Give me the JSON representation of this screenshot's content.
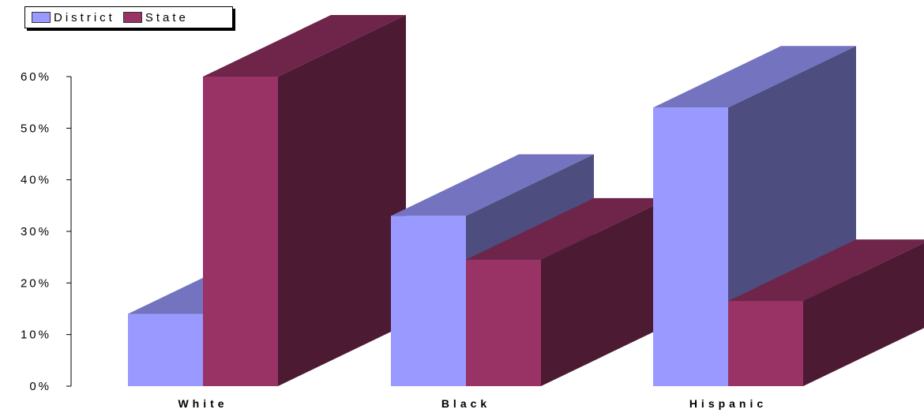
{
  "legend": {
    "district_label": "District",
    "state_label": "State"
  },
  "colors": {
    "district": "#9999ff",
    "state": "#993366"
  },
  "chart_data": {
    "type": "bar",
    "categories": [
      "White",
      "Black",
      "Hispanic"
    ],
    "series": [
      {
        "name": "District",
        "values": [
          14,
          33,
          54
        ]
      },
      {
        "name": "State",
        "values": [
          60,
          24.5,
          16.5
        ]
      }
    ],
    "ylim": [
      0,
      60
    ],
    "yticks": [
      0,
      10,
      20,
      30,
      40,
      50,
      60
    ],
    "ytick_labels": [
      "0%",
      "10%",
      "20%",
      "30%",
      "40%",
      "50%",
      "60%"
    ],
    "legend_position": "top-left",
    "grid": false
  }
}
